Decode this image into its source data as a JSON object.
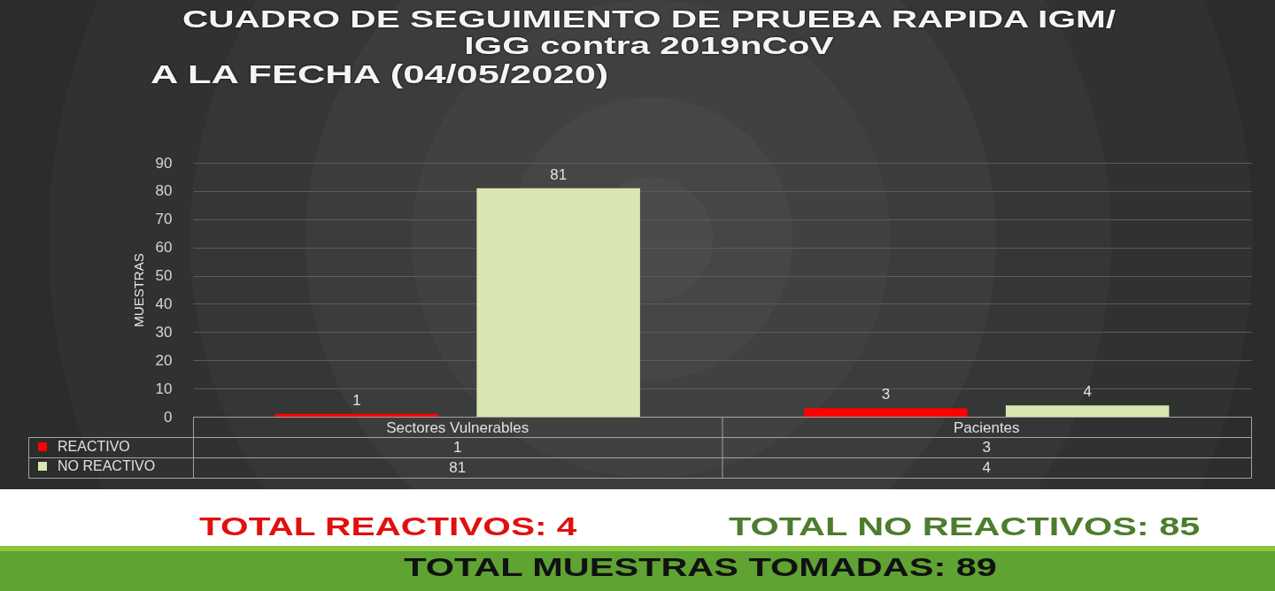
{
  "chart_data": {
    "type": "bar",
    "title": "CUADRO DE SEGUIMIENTO DE PRUEBA RAPIDA IGM/ IGG contra 2019nCoV",
    "subtitle": "A LA FECHA (04/05/2020)",
    "ylabel": "MUESTRAS",
    "categories": [
      "Sectores Vulnerables",
      "Pacientes"
    ],
    "series": [
      {
        "name": "REACTIVO",
        "color": "#ff0000",
        "values": [
          1,
          3
        ]
      },
      {
        "name": "NO REACTIVO",
        "color": "#d8e7b1",
        "values": [
          81,
          4
        ]
      }
    ],
    "ylim": [
      0,
      90
    ],
    "yticks": [
      0,
      10,
      20,
      30,
      40,
      50,
      60,
      70,
      80,
      90
    ],
    "grid": "y",
    "legend": "bottom left",
    "data_labels": true,
    "annotations": [
      "1",
      "3",
      "81",
      "4",
      "TOTAL REACTIVOS: 4",
      "TOTAL NO REACTIVOS: 85",
      "TOTAL MUESTRAS TOMADAS: 89"
    ]
  }
}
